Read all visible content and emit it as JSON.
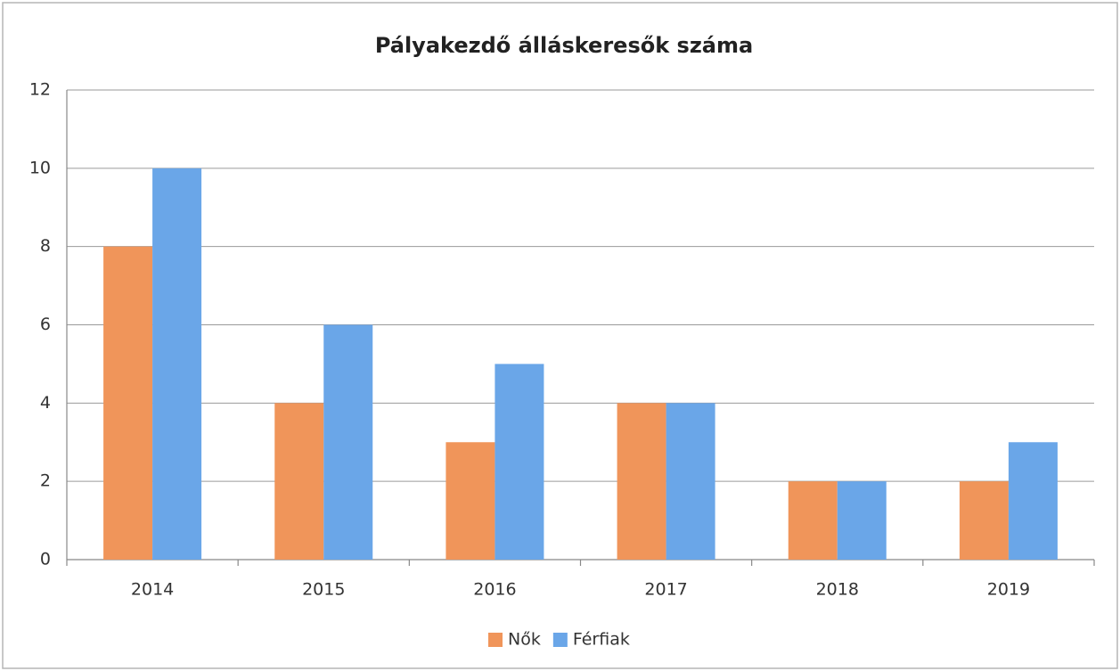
{
  "chart_data": {
    "type": "bar",
    "title": "Pályakezdő álláskeresők száma",
    "categories": [
      "2014",
      "2015",
      "2016",
      "2017",
      "2018",
      "2019"
    ],
    "series": [
      {
        "name": "Nők",
        "color": "#f0955a",
        "values": [
          8,
          4,
          3,
          4,
          2,
          2
        ]
      },
      {
        "name": "Férfiak",
        "color": "#6aa6e8",
        "values": [
          10,
          6,
          5,
          4,
          2,
          3
        ]
      }
    ],
    "ylim": [
      0,
      12
    ],
    "yticks": [
      0,
      2,
      4,
      6,
      8,
      10,
      12
    ],
    "grid": true,
    "legend": "bottom"
  }
}
